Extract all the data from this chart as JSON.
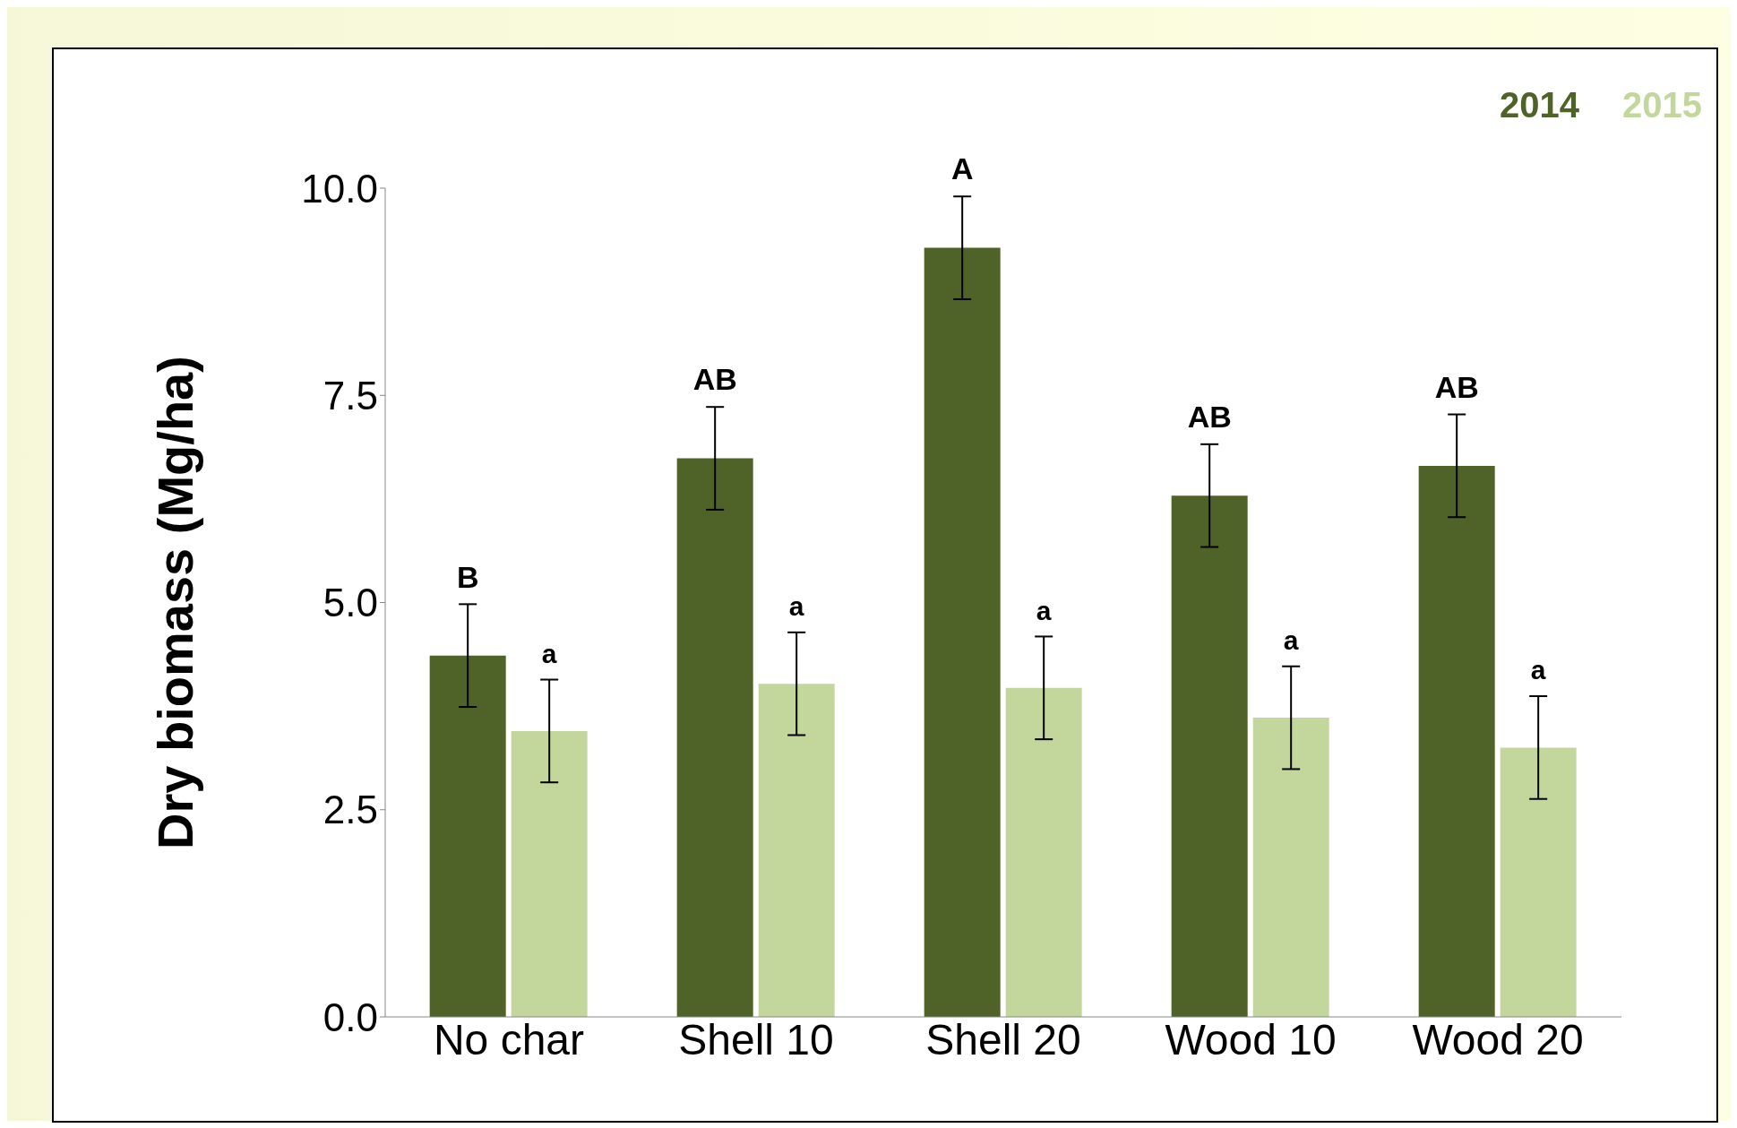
{
  "chart_data": {
    "type": "bar",
    "ylabel": "Dry biomass (Mg/ha)",
    "categories": [
      "No char",
      "Shell 10",
      "Shell 20",
      "Wood 10",
      "Wood 20"
    ],
    "series": [
      {
        "name": "2014",
        "color": "#4f6228",
        "values": [
          4.36,
          6.74,
          9.28,
          6.29,
          6.65
        ],
        "errors": [
          0.62,
          0.62,
          0.62,
          0.62,
          0.62
        ],
        "value_labels": [
          "B",
          "AB",
          "A",
          "AB",
          "AB"
        ]
      },
      {
        "name": "2015",
        "color": "#c3d69b",
        "values": [
          3.45,
          4.02,
          3.97,
          3.61,
          3.25
        ],
        "errors": [
          0.62,
          0.62,
          0.62,
          0.62,
          0.62
        ],
        "value_labels": [
          "a",
          "a",
          "a",
          "a",
          "a"
        ]
      }
    ],
    "ylim": [
      0,
      10
    ],
    "yticks": [
      {
        "value": 0,
        "label": "0.0"
      },
      {
        "value": 2.5,
        "label": "2.5"
      },
      {
        "value": 5,
        "label": "5.0"
      },
      {
        "value": 7.5,
        "label": "7.5"
      },
      {
        "value": 10,
        "label": "10.0"
      }
    ],
    "grid": false,
    "legend": "top right"
  }
}
